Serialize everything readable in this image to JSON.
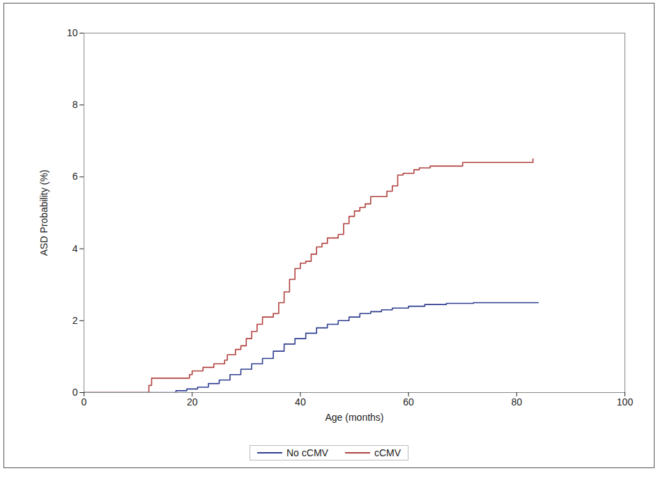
{
  "chart_data": {
    "type": "line",
    "x_label": "Age (months)",
    "y_label": "ASD Probability (%)",
    "xlim": [
      0,
      100
    ],
    "xticks": [
      0,
      20,
      40,
      60,
      80,
      100
    ],
    "ylim": [
      0,
      10
    ],
    "yticks": [
      0,
      2,
      4,
      6,
      8,
      10
    ],
    "grid": false,
    "legend": "bottom",
    "line_style": "step",
    "series": [
      {
        "name": "No cCMV",
        "color": "#2e3d8f",
        "x": [
          0,
          17,
          19,
          21,
          23,
          25,
          27,
          29,
          31,
          33,
          35,
          37,
          39,
          41,
          43,
          45,
          47,
          49,
          51,
          53,
          55,
          57,
          60,
          63,
          67,
          72,
          84
        ],
        "values": [
          0,
          0.05,
          0.1,
          0.15,
          0.25,
          0.35,
          0.5,
          0.65,
          0.8,
          0.95,
          1.15,
          1.35,
          1.5,
          1.65,
          1.8,
          1.9,
          2.0,
          2.1,
          2.2,
          2.25,
          2.3,
          2.35,
          2.4,
          2.45,
          2.48,
          2.5,
          2.5
        ]
      },
      {
        "name": "cCMV",
        "color": "#b0413e",
        "x": [
          0,
          12,
          12.5,
          19,
          19.5,
          20,
          22,
          24,
          26,
          26.5,
          28,
          29,
          30,
          31,
          32,
          33,
          35,
          36,
          37,
          38,
          39,
          40,
          41,
          42,
          43,
          44,
          45,
          47,
          48,
          49,
          50,
          51,
          52,
          53,
          56,
          57,
          58,
          59,
          61,
          62,
          64,
          70,
          83
        ],
        "values": [
          0,
          0.2,
          0.4,
          0.4,
          0.5,
          0.6,
          0.7,
          0.8,
          0.9,
          1.05,
          1.2,
          1.3,
          1.5,
          1.7,
          1.9,
          2.1,
          2.2,
          2.5,
          2.8,
          3.15,
          3.45,
          3.6,
          3.65,
          3.85,
          4.05,
          4.15,
          4.3,
          4.4,
          4.7,
          4.9,
          5.05,
          5.15,
          5.25,
          5.45,
          5.6,
          5.75,
          6.05,
          6.1,
          6.2,
          6.25,
          6.3,
          6.4,
          6.5
        ]
      }
    ]
  }
}
